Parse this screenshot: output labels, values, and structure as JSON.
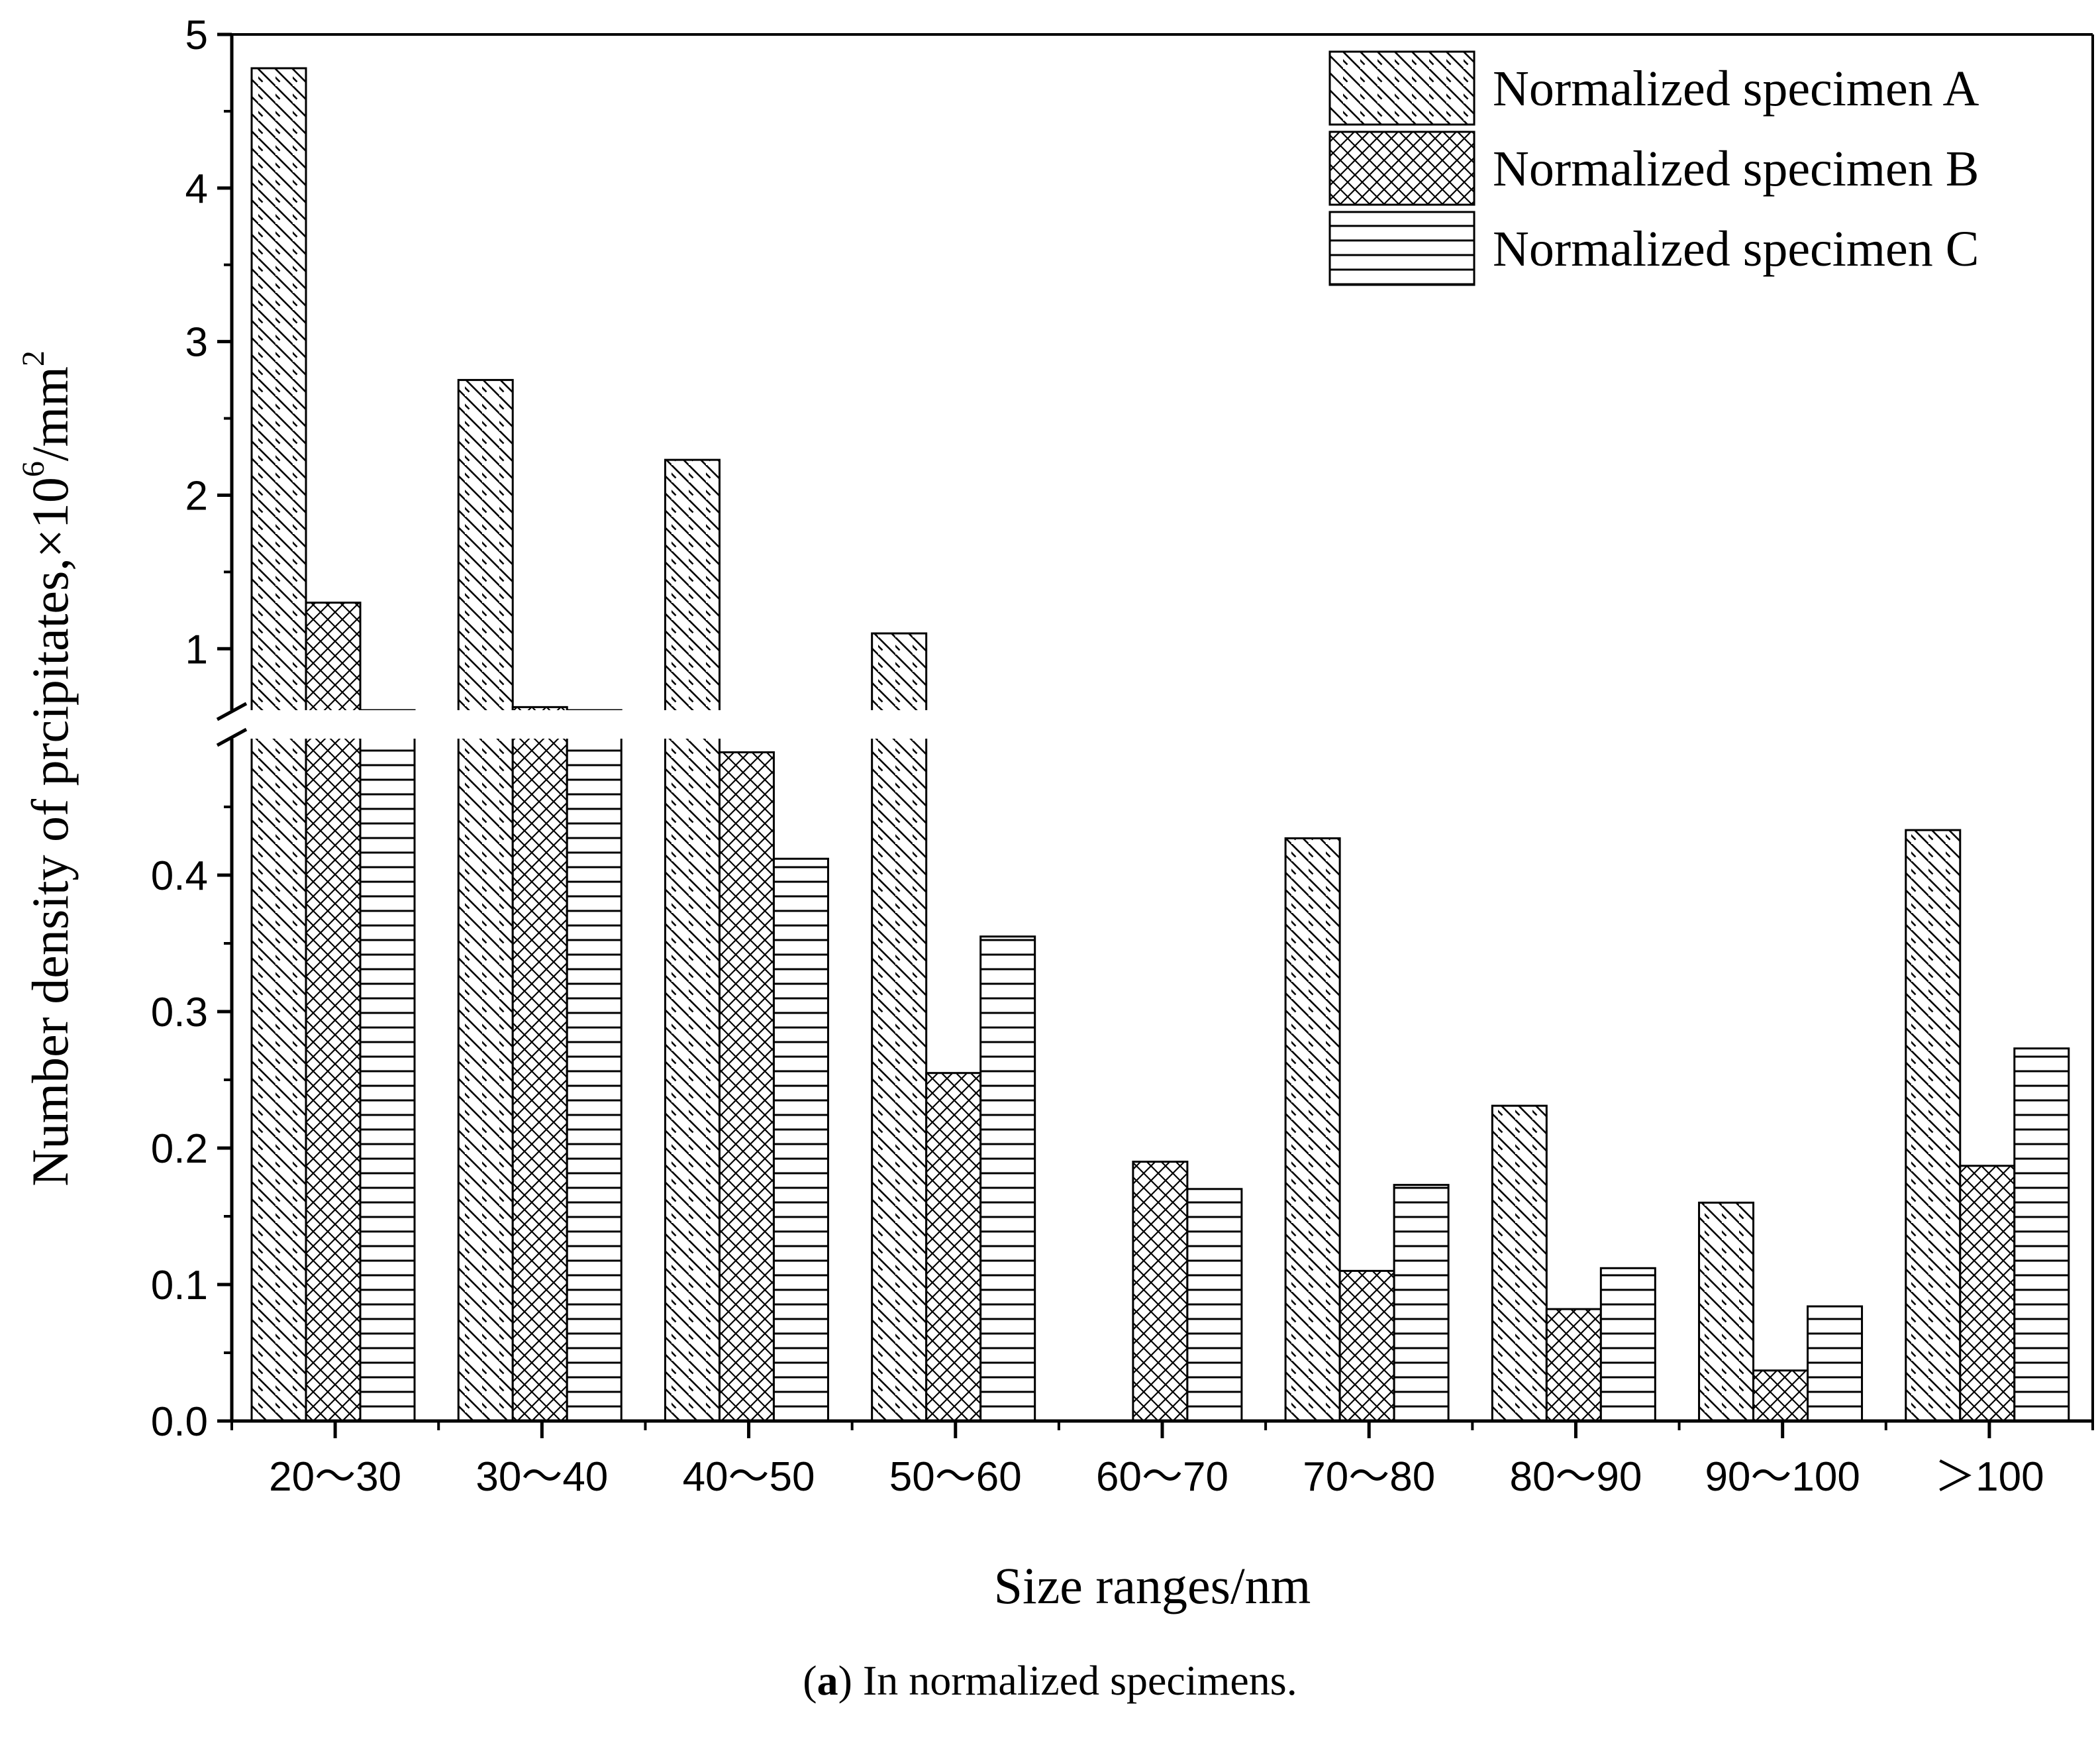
{
  "chart_data": {
    "type": "bar",
    "title": "",
    "xlabel": "Size ranges/nm",
    "ylabel": "Number density of prcipitates,×10⁶/mm²",
    "ylabel_parts": {
      "main": "Number density of prcipitates,×10",
      "sup1": "6",
      "mid": "/mm",
      "sup2": "2"
    },
    "categories": [
      "20～30",
      "30～40",
      "40～50",
      "50～60",
      "60～70",
      "70～80",
      "80～90",
      "90～100",
      "＞100"
    ],
    "series": [
      {
        "name": "Normalized specimen A",
        "pattern": "diagonal",
        "values": [
          4.78,
          2.75,
          2.23,
          1.1,
          0,
          0.427,
          0.231,
          0.16,
          0.433
        ]
      },
      {
        "name": "Normalized specimen B",
        "pattern": "crosshatch",
        "values": [
          1.3,
          0.62,
          0.49,
          0.255,
          0.19,
          0.11,
          0.082,
          0.037,
          0.187
        ]
      },
      {
        "name": "Normalized specimen C",
        "pattern": "horizontal",
        "values": [
          0.6,
          0.6,
          0.412,
          0.355,
          0.17,
          0.173,
          0.112,
          0.084,
          0.273
        ]
      }
    ],
    "y_axis": {
      "broken": true,
      "lower_range": [
        0,
        0.5
      ],
      "upper_range": [
        0.6,
        5
      ],
      "lower_ticks": [
        "0.0",
        "0.1",
        "0.2",
        "0.3",
        "0.4"
      ],
      "upper_ticks": [
        "1",
        "2",
        "3",
        "4",
        "5"
      ]
    },
    "legend_position": "top-right",
    "grid": false
  },
  "caption": {
    "label": "a",
    "text": " In normalized specimens."
  }
}
